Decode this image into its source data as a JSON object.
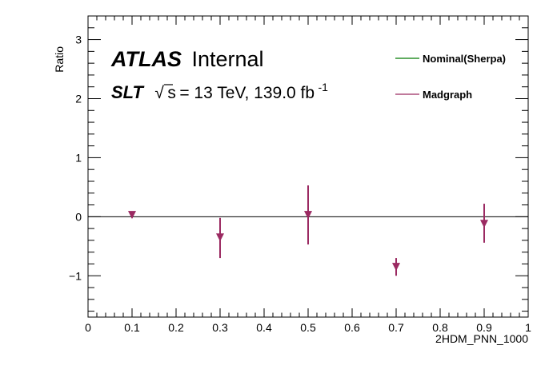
{
  "chart_data": {
    "type": "scatter",
    "x": [
      0.1,
      0.3,
      0.5,
      0.7,
      0.9
    ],
    "series": [
      {
        "name": "Nominal(Sherpa)",
        "color": "#007a00",
        "values": [
          0,
          0,
          0,
          0,
          0
        ],
        "style": "line"
      },
      {
        "name": "Madgraph",
        "color": "#9b2a62",
        "values": [
          0.03,
          -0.35,
          0.03,
          -0.85,
          -0.12
        ],
        "err_low": [
          0.05,
          0.35,
          0.5,
          0.15,
          0.32
        ],
        "err_high": [
          0.05,
          0.33,
          0.5,
          0.15,
          0.34
        ],
        "marker": "triangle-down"
      }
    ],
    "xlabel": "2HDM_PNN_1000",
    "ylabel": "Ratio",
    "xlim": [
      0,
      1
    ],
    "ylim": [
      -1.7,
      3.4
    ],
    "xticks": [
      0,
      0.1,
      0.2,
      0.3,
      0.4,
      0.5,
      0.6,
      0.7,
      0.8,
      0.9,
      1
    ],
    "xtick_labels": [
      "0",
      "0.1",
      "0.2",
      "0.3",
      "0.4",
      "0.5",
      "0.6",
      "0.7",
      "0.8",
      "0.9",
      "1"
    ],
    "yticks": [
      -1,
      0,
      1,
      2,
      3
    ],
    "ytick_labels": [
      "−1",
      "0",
      "1",
      "2",
      "3"
    ],
    "reference_line": 0,
    "grid": false,
    "legend_position": "top-right",
    "annotation": {
      "experiment": "ATLAS",
      "status": "Internal",
      "channel": "SLT",
      "sqrt": "√",
      "s": "s",
      "energy_text": " = 13 TeV, 139.0 fb",
      "lumi_exponent": "-1"
    }
  }
}
